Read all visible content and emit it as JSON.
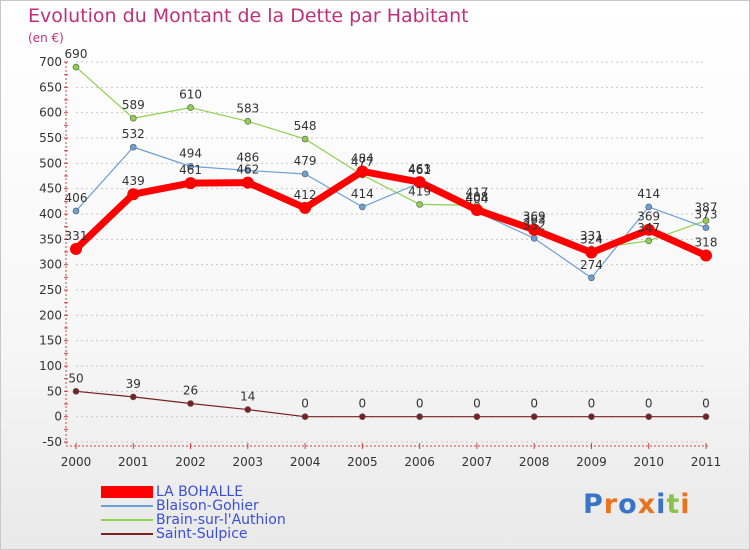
{
  "chart_data": {
    "type": "line",
    "title": "Evolution du Montant de la Dette par Habitant",
    "ylabel": "(en €)",
    "xlabel": "",
    "x": [
      "2000",
      "2001",
      "2002",
      "2003",
      "2004",
      "2005",
      "2006",
      "2007",
      "2008",
      "2009",
      "2010",
      "2011"
    ],
    "ylim": [
      -50,
      700
    ],
    "yticks": [
      -50,
      0,
      50,
      100,
      150,
      200,
      250,
      300,
      350,
      400,
      450,
      500,
      550,
      600,
      650,
      700
    ],
    "grid": "y-dashed",
    "legend_position": "bottom-left",
    "series": [
      {
        "name": "LA BOHALLE",
        "color": "#ff0000",
        "width": 7,
        "marker": 6,
        "values": [
          331,
          439,
          461,
          462,
          412,
          484,
          463,
          408,
          369,
          324,
          369,
          318
        ]
      },
      {
        "name": "Blaison-Gohier",
        "color": "#6b9fd6",
        "width": 1.2,
        "marker": 3,
        "values": [
          406,
          532,
          494,
          486,
          479,
          414,
          461,
          404,
          352,
          274,
          414,
          373
        ]
      },
      {
        "name": "Brain-sur-l'Authion",
        "color": "#8fd14f",
        "width": 1.2,
        "marker": 3,
        "values": [
          690,
          589,
          610,
          583,
          548,
          477,
          419,
          417,
          363,
          331,
          347,
          387
        ]
      },
      {
        "name": "Saint-Sulpice",
        "color": "#7a2020",
        "width": 1.2,
        "marker": 3,
        "values": [
          50,
          39,
          26,
          14,
          0,
          0,
          0,
          0,
          0,
          0,
          0,
          0
        ]
      }
    ]
  },
  "branding": {
    "logo_text": "Proxiti",
    "logo_colors": [
      "#3a74c4",
      "#e8731f",
      "#3a74c4",
      "#e8731f",
      "#3a74c4",
      "#8bc34a",
      "#e8731f"
    ]
  }
}
